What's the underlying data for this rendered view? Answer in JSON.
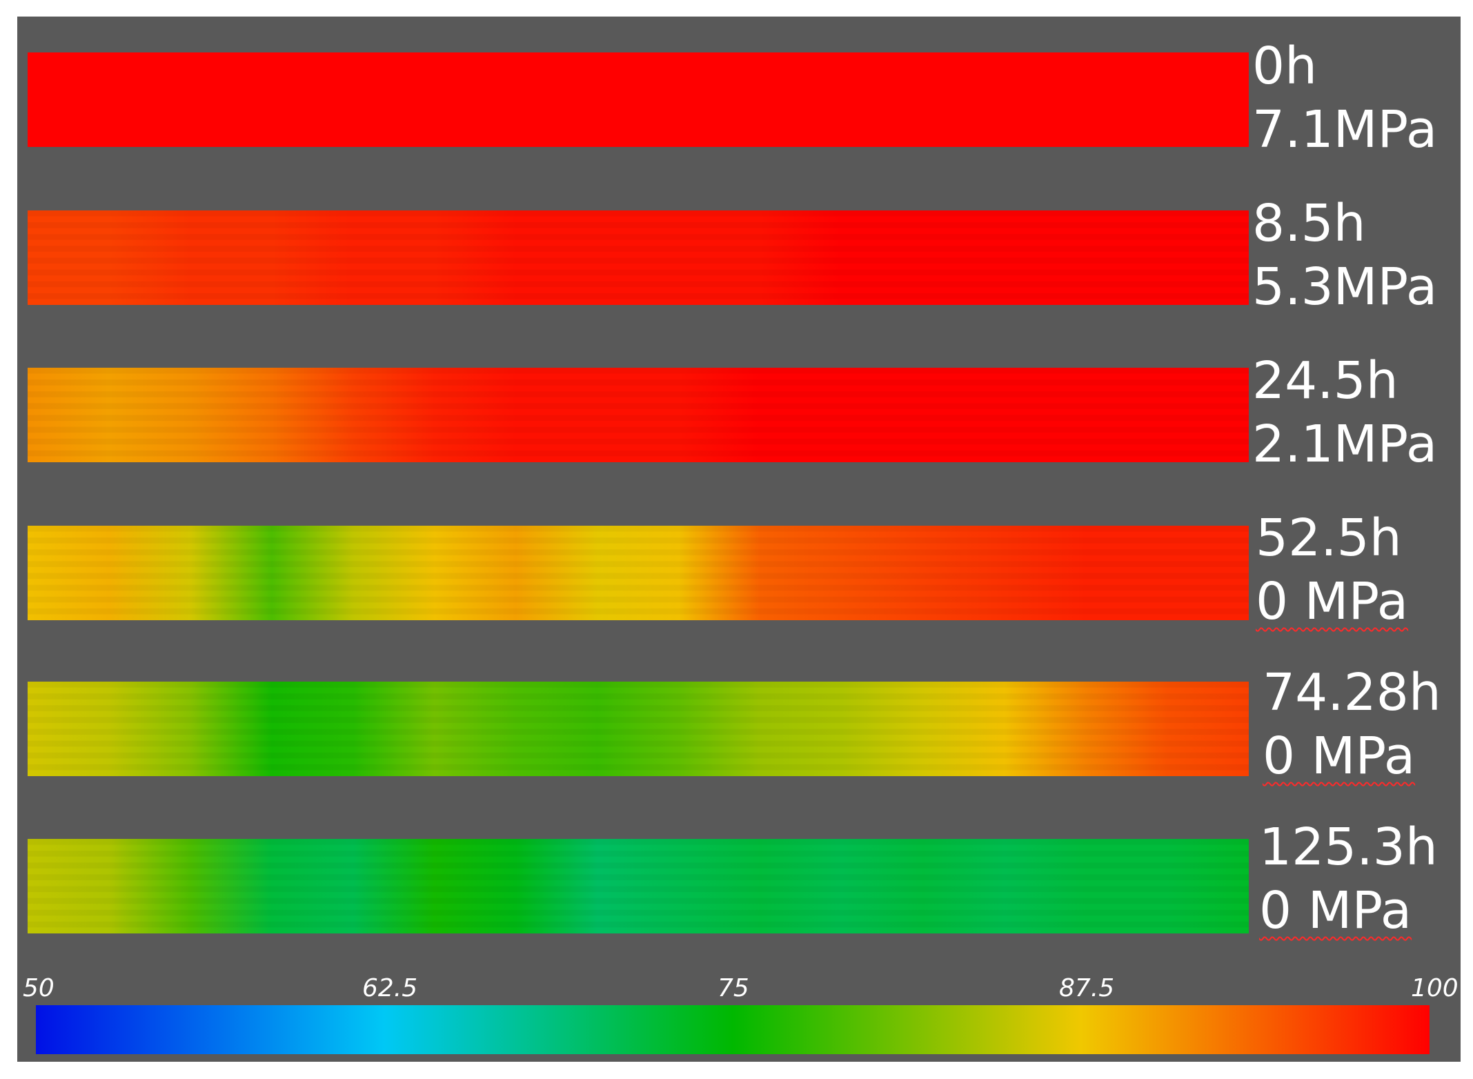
{
  "chart_data": {
    "type": "heatmap",
    "title": "",
    "xlabel": "",
    "ylabel": "",
    "strips": [
      {
        "time": "0h",
        "pressure": "7.1MPa",
        "profile": [
          100,
          100,
          100,
          100,
          100,
          100,
          100,
          100,
          100,
          100,
          100,
          100,
          100,
          100,
          100,
          100
        ]
      },
      {
        "time": "8.5h",
        "pressure": "5.3MPa",
        "profile": [
          96,
          96,
          97,
          97,
          98,
          98,
          99,
          99,
          99,
          99,
          100,
          100,
          100,
          100,
          100,
          100
        ]
      },
      {
        "time": "24.5h",
        "pressure": "2.1MPa",
        "profile": [
          91,
          90,
          91,
          93,
          96,
          98,
          99,
          99,
          99,
          100,
          100,
          100,
          100,
          100,
          100,
          100
        ]
      },
      {
        "time": "52.5h",
        "pressure": "0 MPa",
        "profile": [
          88,
          89,
          86,
          79,
          85,
          88,
          90,
          87,
          88,
          94,
          95,
          96,
          97,
          98,
          98,
          98
        ]
      },
      {
        "time": "74.28h",
        "pressure": "0 MPa",
        "profile": [
          86,
          85,
          82,
          76,
          77,
          81,
          79,
          78,
          80,
          83,
          84,
          86,
          88,
          92,
          95,
          96
        ]
      },
      {
        "time": "125.3h",
        "pressure": "0 MPa",
        "profile": [
          85,
          84,
          79,
          72,
          71,
          76,
          74,
          70,
          71,
          72,
          71,
          72,
          71,
          72,
          72,
          73
        ]
      }
    ],
    "colorbar": {
      "min": 50,
      "max": 100,
      "ticks": [
        50,
        62.5,
        75,
        87.5,
        100
      ],
      "tick_labels": [
        "50",
        "62.5",
        "75",
        "87.5",
        "100"
      ],
      "colors": [
        "#0010e6",
        "#00c8f5",
        "#00b800",
        "#f0c800",
        "#ff0000"
      ]
    },
    "colors": {
      "background": "#595959",
      "label": "#ffffff"
    }
  }
}
